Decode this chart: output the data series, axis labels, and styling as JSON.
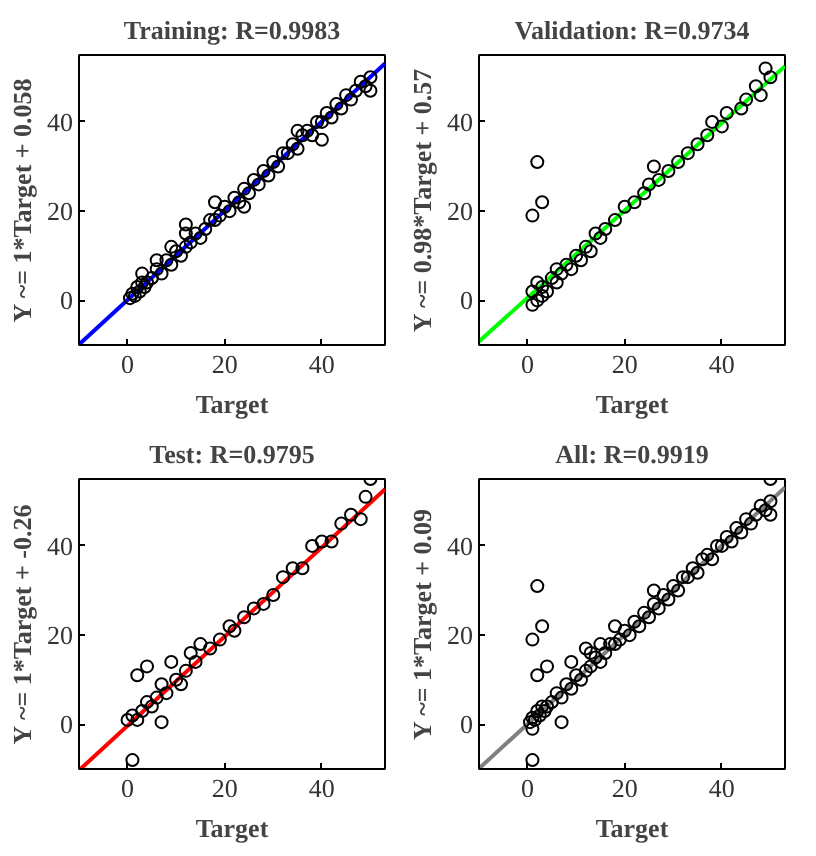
{
  "chart_data": [
    {
      "type": "scatter",
      "title": "Training: R=0.9983",
      "xlabel": "Target",
      "ylabel": "Y ~= 1*Target + 0.058",
      "xlim": [
        -10,
        53
      ],
      "ylim": [
        -10,
        55
      ],
      "xticks": [
        0,
        20,
        40
      ],
      "yticks": [
        0,
        20,
        40
      ],
      "series": [
        {
          "marker": "circle",
          "color": "#000000",
          "x": [
            0.5,
            1,
            1.5,
            2,
            2.5,
            3,
            3.5,
            4,
            5,
            6,
            7,
            8,
            9,
            10,
            11,
            12,
            12,
            13,
            14,
            15,
            16,
            17,
            18,
            18,
            19,
            20,
            21,
            22,
            23,
            24,
            25,
            26,
            27,
            28,
            29,
            30,
            31,
            32,
            33,
            34,
            35,
            36,
            37,
            38,
            39,
            40,
            41,
            42,
            43,
            44,
            45,
            46,
            47,
            48,
            49,
            50,
            50,
            3,
            6,
            9,
            12,
            24,
            35,
            40
          ],
          "values": [
            0.5,
            1.5,
            1,
            3,
            2,
            4,
            3,
            4,
            5,
            7,
            6,
            9,
            8,
            11,
            10,
            12,
            17,
            13,
            15,
            14,
            16,
            18,
            18,
            22,
            19,
            21,
            20,
            23,
            22,
            25,
            24,
            27,
            26,
            29,
            28,
            31,
            30,
            33,
            33,
            35,
            34,
            37,
            38,
            37,
            40,
            40,
            42,
            41,
            44,
            43,
            46,
            45,
            47,
            49,
            48,
            50,
            47,
            6,
            9,
            12,
            15,
            21,
            38,
            36
          ]
        },
        {
          "type": "line",
          "color": "#0000ff",
          "x": [
            -10,
            53
          ],
          "values": [
            -9.9,
            53.1
          ]
        }
      ]
    },
    {
      "type": "scatter",
      "title": "Validation: R=0.9734",
      "xlabel": "Target",
      "ylabel": "Y ~= 0.98*Target + 0.57",
      "xlim": [
        -10,
        53
      ],
      "ylim": [
        -10,
        55
      ],
      "xticks": [
        0,
        20,
        40
      ],
      "yticks": [
        0,
        20,
        40
      ],
      "series": [
        {
          "marker": "circle",
          "color": "#000000",
          "x": [
            1,
            1,
            2,
            2,
            3,
            3,
            4,
            5,
            6,
            6,
            7,
            8,
            9,
            10,
            11,
            12,
            13,
            14,
            15,
            16,
            18,
            20,
            22,
            24,
            25,
            26,
            27,
            29,
            31,
            33,
            35,
            37,
            38,
            40,
            41,
            44,
            45,
            47,
            48,
            49,
            50,
            1,
            2,
            3
          ],
          "values": [
            -1,
            2,
            0,
            4,
            1,
            3,
            2,
            5,
            4,
            7,
            6,
            8,
            7,
            10,
            9,
            12,
            11,
            15,
            14,
            16,
            18,
            21,
            22,
            24,
            26,
            30,
            27,
            29,
            31,
            33,
            35,
            37,
            40,
            39,
            42,
            43,
            45,
            48,
            46,
            52,
            50,
            19,
            31,
            22
          ]
        },
        {
          "type": "line",
          "color": "#00ff00",
          "x": [
            -10,
            53
          ],
          "values": [
            -9.2,
            52.5
          ]
        }
      ]
    },
    {
      "type": "scatter",
      "title": "Test: R=0.9795",
      "xlabel": "Target",
      "ylabel": "Y ~= 1*Target + -0.26",
      "xlim": [
        -10,
        53
      ],
      "ylim": [
        -10,
        55
      ],
      "xticks": [
        0,
        20,
        40
      ],
      "yticks": [
        0,
        20,
        40
      ],
      "series": [
        {
          "marker": "circle",
          "color": "#000000",
          "x": [
            0,
            1,
            1,
            2,
            2,
            3,
            4,
            4,
            5,
            6,
            7,
            7,
            8,
            9,
            10,
            11,
            12,
            13,
            14,
            15,
            17,
            19,
            21,
            22,
            24,
            26,
            28,
            30,
            32,
            34,
            36,
            38,
            40,
            42,
            44,
            46,
            48,
            49,
            50
          ],
          "values": [
            1,
            2,
            -8,
            1,
            11,
            3,
            13,
            5,
            4,
            6,
            0.5,
            9,
            7,
            14,
            10,
            9,
            12,
            16,
            14,
            18,
            17,
            19,
            22,
            21,
            24,
            26,
            27,
            29,
            33,
            35,
            35,
            40,
            41,
            41,
            45,
            47,
            46,
            51,
            55
          ]
        },
        {
          "type": "line",
          "color": "#ff0000",
          "x": [
            -9.7,
            53
          ],
          "values": [
            -10,
            52.7
          ]
        }
      ]
    },
    {
      "type": "scatter",
      "title": "All: R=0.9919",
      "xlabel": "Target",
      "ylabel": "Y ~= 1*Target + 0.09",
      "xlim": [
        -10,
        53
      ],
      "ylim": [
        -10,
        55
      ],
      "xticks": [
        0,
        20,
        40
      ],
      "yticks": [
        0,
        20,
        40
      ],
      "series": [
        {
          "marker": "circle",
          "color": "#000000",
          "x": [
            0.5,
            1,
            1.5,
            2,
            2.5,
            3,
            3.5,
            4,
            5,
            6,
            7,
            8,
            9,
            10,
            11,
            12,
            12,
            13,
            14,
            15,
            16,
            17,
            18,
            18,
            19,
            20,
            21,
            22,
            23,
            24,
            25,
            26,
            27,
            28,
            29,
            30,
            31,
            32,
            33,
            34,
            35,
            36,
            37,
            38,
            39,
            40,
            41,
            42,
            43,
            44,
            45,
            46,
            47,
            48,
            49,
            50,
            50,
            1,
            2,
            3,
            1,
            2,
            4,
            7,
            9,
            13,
            1,
            50,
            15,
            26
          ],
          "values": [
            0.5,
            1.5,
            1,
            3,
            2,
            4,
            3,
            4,
            5,
            7,
            6,
            9,
            8,
            11,
            10,
            12,
            17,
            13,
            15,
            14,
            16,
            18,
            18,
            22,
            19,
            21,
            20,
            23,
            22,
            25,
            24,
            27,
            26,
            29,
            28,
            31,
            30,
            33,
            33,
            35,
            34,
            37,
            38,
            37,
            40,
            40,
            42,
            41,
            44,
            43,
            46,
            45,
            47,
            49,
            48,
            50,
            47,
            19,
            31,
            22,
            -8,
            11,
            13,
            0.5,
            14,
            16,
            -1,
            55,
            18,
            30
          ]
        },
        {
          "type": "line",
          "color": "#808080",
          "x": [
            -10,
            53
          ],
          "values": [
            -9.9,
            53.1
          ]
        }
      ]
    }
  ]
}
